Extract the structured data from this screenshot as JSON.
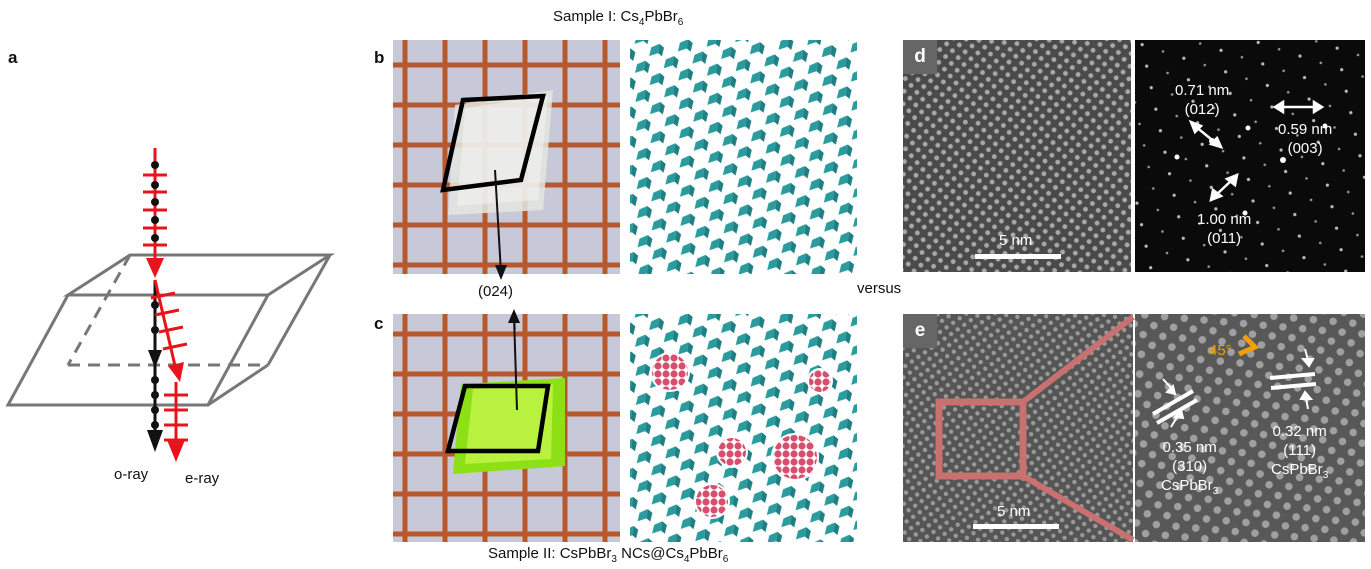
{
  "labels": {
    "a": "a",
    "b": "b",
    "c": "c",
    "d": "d",
    "e": "e"
  },
  "sample1": {
    "prefix": "Sample I: Cs",
    "sub1": "4",
    "mid": "PbBr",
    "sub2": "6"
  },
  "sample2": {
    "p1": "Sample II: CsPbBr",
    "s1": "3",
    "p2": " NCs@Cs",
    "s2": "4",
    "p3": "PbBr",
    "s3": "6"
  },
  "plane_024": "(024)",
  "versus": "versus",
  "rays": {
    "o": "o-ray",
    "e": "e-ray"
  },
  "panel_d": {
    "scale": "5 nm",
    "spots": [
      {
        "d": "0.71 nm",
        "hkl": "(012)"
      },
      {
        "d": "0.59 nm",
        "hkl": "(003)"
      },
      {
        "d": "1.00 nm",
        "hkl": "(011)"
      }
    ]
  },
  "panel_e": {
    "scale": "5 nm",
    "angle": "45°",
    "fringes": [
      {
        "d": "0.35 nm",
        "hkl": "(310)",
        "phase_prefix": "CsPbBr",
        "phase_sub": "3"
      },
      {
        "d": "0.32 nm",
        "hkl": "(111)",
        "phase_prefix": "CsPbBr",
        "phase_sub": "3"
      }
    ]
  },
  "colors": {
    "ray_red": "#e8141c",
    "lattice_teal": "#2a9c9e",
    "nc_pink": "#d4506e",
    "box_salmon": "#c97070",
    "angle_orange": "#f0a000",
    "tag_gray": "#666666"
  }
}
